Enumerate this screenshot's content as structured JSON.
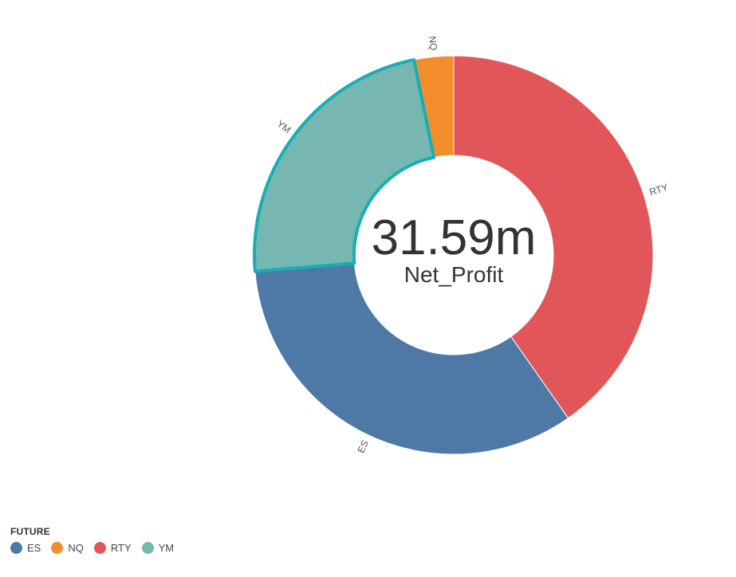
{
  "chart_data": {
    "type": "pie",
    "donut": true,
    "center_value": "31.59m",
    "center_label": "Net_Profit",
    "categories": [
      "RTY",
      "ES",
      "YM",
      "NQ"
    ],
    "values": [
      12.72,
      10.56,
      7.3,
      1.01
    ],
    "colors": {
      "ES": "#4e79a7",
      "NQ": "#f28e2b",
      "RTY": "#e15759",
      "YM": "#76b7b2"
    },
    "highlighted": "YM",
    "highlight_color": "#17aeb4",
    "legend_title": "FUTURE",
    "legend": [
      "ES",
      "NQ",
      "RTY",
      "YM"
    ],
    "legend_placement": "bottom-left"
  }
}
